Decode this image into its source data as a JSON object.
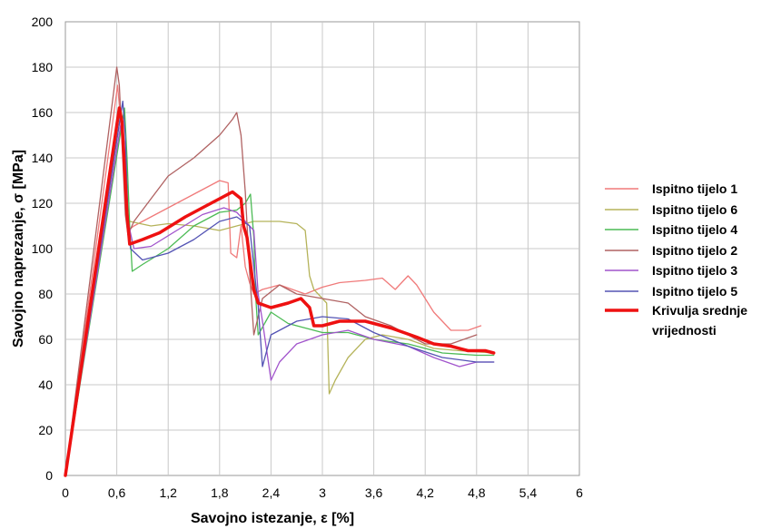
{
  "chart_data": {
    "type": "line",
    "xlabel": "Savojno istezanje, ε [%]",
    "ylabel": "Savojno naprezanje, σ [MPa]",
    "xlim": [
      0,
      6
    ],
    "ylim": [
      0,
      200
    ],
    "x_ticks": [
      0,
      0.6,
      1.2,
      1.8,
      2.4,
      3,
      3.6,
      4.2,
      4.8,
      5.4,
      6
    ],
    "x_tick_labels": [
      "0",
      "0,6",
      "1,2",
      "1,8",
      "2,4",
      "3",
      "3,6",
      "4,2",
      "4,8",
      "5,4",
      "6"
    ],
    "y_ticks": [
      0,
      20,
      40,
      60,
      80,
      100,
      120,
      140,
      160,
      180,
      200
    ],
    "y_tick_labels": [
      "0",
      "20",
      "40",
      "60",
      "80",
      "100",
      "120",
      "140",
      "160",
      "180",
      "200"
    ],
    "grid": true,
    "legend_position": "right",
    "series": [
      {
        "name": "Ispitno tijelo 1",
        "color": "#f07a7a",
        "width": 1.3,
        "points": [
          [
            0,
            0
          ],
          [
            0.61,
            172
          ],
          [
            0.66,
            150
          ],
          [
            0.7,
            120
          ],
          [
            0.73,
            108
          ],
          [
            0.8,
            110
          ],
          [
            1.0,
            114
          ],
          [
            1.3,
            120
          ],
          [
            1.6,
            126
          ],
          [
            1.8,
            130
          ],
          [
            1.9,
            129
          ],
          [
            1.93,
            98
          ],
          [
            2.0,
            96
          ],
          [
            2.05,
            110
          ],
          [
            2.1,
            92
          ],
          [
            2.15,
            85
          ],
          [
            2.2,
            80
          ],
          [
            2.3,
            82
          ],
          [
            2.5,
            84
          ],
          [
            2.8,
            80
          ],
          [
            3.0,
            83
          ],
          [
            3.2,
            85
          ],
          [
            3.5,
            86
          ],
          [
            3.7,
            87
          ],
          [
            3.85,
            82
          ],
          [
            4.0,
            88
          ],
          [
            4.1,
            84
          ],
          [
            4.3,
            72
          ],
          [
            4.5,
            64
          ],
          [
            4.7,
            64
          ],
          [
            4.85,
            66
          ]
        ]
      },
      {
        "name": "Ispitno tijelo 6",
        "color": "#b5b35a",
        "width": 1.3,
        "points": [
          [
            0,
            0
          ],
          [
            0.65,
            160
          ],
          [
            0.68,
            150
          ],
          [
            0.72,
            118
          ],
          [
            0.75,
            112
          ],
          [
            1.0,
            110
          ],
          [
            1.2,
            111
          ],
          [
            1.5,
            110
          ],
          [
            1.8,
            108
          ],
          [
            2.0,
            110
          ],
          [
            2.2,
            112
          ],
          [
            2.5,
            112
          ],
          [
            2.7,
            111
          ],
          [
            2.8,
            108
          ],
          [
            2.85,
            88
          ],
          [
            2.9,
            82
          ],
          [
            3.0,
            78
          ],
          [
            3.05,
            76
          ],
          [
            3.08,
            36
          ],
          [
            3.15,
            42
          ],
          [
            3.3,
            52
          ],
          [
            3.5,
            60
          ],
          [
            3.7,
            62
          ],
          [
            4.0,
            60
          ],
          [
            4.3,
            56
          ],
          [
            4.6,
            55
          ],
          [
            5.0,
            54
          ]
        ]
      },
      {
        "name": "Ispitno tijelo 4",
        "color": "#4cbb55",
        "width": 1.3,
        "points": [
          [
            0,
            0
          ],
          [
            0.69,
            162
          ],
          [
            0.72,
            140
          ],
          [
            0.75,
            110
          ],
          [
            0.78,
            90
          ],
          [
            0.9,
            93
          ],
          [
            1.2,
            100
          ],
          [
            1.5,
            110
          ],
          [
            1.8,
            116
          ],
          [
            2.0,
            117
          ],
          [
            2.1,
            120
          ],
          [
            2.16,
            124
          ],
          [
            2.2,
            105
          ],
          [
            2.22,
            80
          ],
          [
            2.25,
            62
          ],
          [
            2.4,
            72
          ],
          [
            2.6,
            67
          ],
          [
            3.0,
            63
          ],
          [
            3.3,
            63
          ],
          [
            3.6,
            60
          ],
          [
            4.0,
            58
          ],
          [
            4.4,
            54
          ],
          [
            4.8,
            53
          ],
          [
            5.0,
            53
          ]
        ]
      },
      {
        "name": "Ispitno tijelo 2",
        "color": "#b06262",
        "width": 1.3,
        "points": [
          [
            0,
            0
          ],
          [
            0.6,
            180
          ],
          [
            0.63,
            172
          ],
          [
            0.7,
            115
          ],
          [
            0.73,
            106
          ],
          [
            0.8,
            112
          ],
          [
            1.0,
            122
          ],
          [
            1.2,
            132
          ],
          [
            1.5,
            140
          ],
          [
            1.8,
            150
          ],
          [
            1.95,
            157
          ],
          [
            2.0,
            160
          ],
          [
            2.05,
            150
          ],
          [
            2.1,
            125
          ],
          [
            2.15,
            90
          ],
          [
            2.2,
            62
          ],
          [
            2.3,
            78
          ],
          [
            2.5,
            84
          ],
          [
            2.7,
            80
          ],
          [
            3.0,
            78
          ],
          [
            3.3,
            76
          ],
          [
            3.5,
            70
          ],
          [
            3.8,
            66
          ],
          [
            4.0,
            62
          ],
          [
            4.2,
            58
          ],
          [
            4.5,
            58
          ],
          [
            4.8,
            62
          ]
        ]
      },
      {
        "name": "Ispitno tijelo 3",
        "color": "#a154cc",
        "width": 1.3,
        "points": [
          [
            0,
            0
          ],
          [
            0.66,
            158
          ],
          [
            0.7,
            140
          ],
          [
            0.73,
            112
          ],
          [
            0.8,
            100
          ],
          [
            1.0,
            101
          ],
          [
            1.3,
            108
          ],
          [
            1.6,
            115
          ],
          [
            1.85,
            118
          ],
          [
            2.0,
            116
          ],
          [
            2.2,
            108
          ],
          [
            2.25,
            80
          ],
          [
            2.3,
            68
          ],
          [
            2.4,
            42
          ],
          [
            2.5,
            50
          ],
          [
            2.7,
            58
          ],
          [
            3.0,
            62
          ],
          [
            3.3,
            64
          ],
          [
            3.6,
            60
          ],
          [
            4.0,
            57
          ],
          [
            4.3,
            52
          ],
          [
            4.6,
            48
          ],
          [
            4.8,
            50
          ],
          [
            5.0,
            50
          ]
        ]
      },
      {
        "name": "Ispitno tijelo 5",
        "color": "#5454b4",
        "width": 1.3,
        "points": [
          [
            0,
            0
          ],
          [
            0.67,
            165
          ],
          [
            0.7,
            150
          ],
          [
            0.73,
            115
          ],
          [
            0.76,
            100
          ],
          [
            0.9,
            95
          ],
          [
            1.2,
            98
          ],
          [
            1.5,
            104
          ],
          [
            1.8,
            112
          ],
          [
            2.0,
            114
          ],
          [
            2.15,
            110
          ],
          [
            2.2,
            92
          ],
          [
            2.25,
            75
          ],
          [
            2.3,
            48
          ],
          [
            2.4,
            62
          ],
          [
            2.7,
            68
          ],
          [
            3.0,
            70
          ],
          [
            3.3,
            69
          ],
          [
            3.6,
            63
          ],
          [
            4.0,
            57
          ],
          [
            4.4,
            52
          ],
          [
            4.8,
            50
          ],
          [
            5.0,
            50
          ]
        ]
      },
      {
        "name": "Krivulja srednje\nvrijednosti",
        "color": "#ee1111",
        "width": 3.5,
        "points": [
          [
            0,
            0
          ],
          [
            0.63,
            162
          ],
          [
            0.66,
            156
          ],
          [
            0.72,
            115
          ],
          [
            0.75,
            102
          ],
          [
            0.9,
            104
          ],
          [
            1.1,
            107
          ],
          [
            1.4,
            114
          ],
          [
            1.6,
            118
          ],
          [
            1.8,
            122
          ],
          [
            1.95,
            125
          ],
          [
            2.05,
            122
          ],
          [
            2.08,
            110
          ],
          [
            2.12,
            105
          ],
          [
            2.15,
            96
          ],
          [
            2.2,
            82
          ],
          [
            2.25,
            76
          ],
          [
            2.4,
            74
          ],
          [
            2.6,
            76
          ],
          [
            2.75,
            78
          ],
          [
            2.85,
            74
          ],
          [
            2.9,
            66
          ],
          [
            3.0,
            66
          ],
          [
            3.2,
            68
          ],
          [
            3.5,
            68
          ],
          [
            3.8,
            65
          ],
          [
            4.1,
            61
          ],
          [
            4.3,
            58
          ],
          [
            4.5,
            57
          ],
          [
            4.7,
            55
          ],
          [
            4.9,
            55
          ],
          [
            5.0,
            54
          ]
        ]
      }
    ]
  }
}
